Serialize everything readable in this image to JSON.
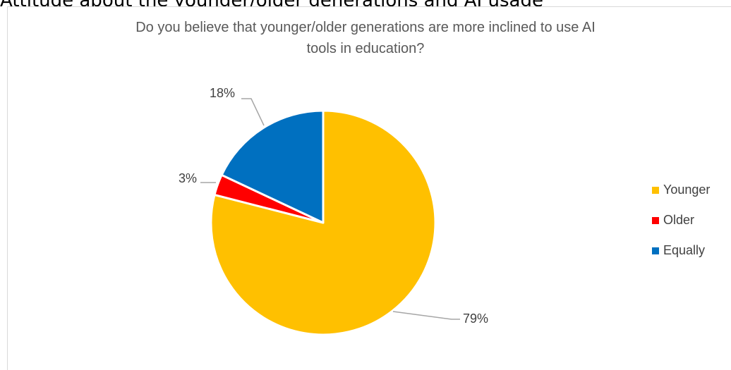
{
  "document": {
    "heading": "Attitude about the younger/older generations and AI usage"
  },
  "chart_data": {
    "type": "pie",
    "title_lines": [
      "Do you believe that younger/older generations are more inclined to use AI",
      "tools in education?"
    ],
    "categories": [
      "Younger",
      "Older",
      "Equally"
    ],
    "values": [
      79,
      3,
      18
    ],
    "data_labels": [
      "79%",
      "3%",
      "18%"
    ],
    "colors": [
      "#FFC000",
      "#FF0000",
      "#0070C0"
    ],
    "legend": {
      "position": "right"
    },
    "start_angle_deg": 0,
    "direction": "clockwise"
  }
}
